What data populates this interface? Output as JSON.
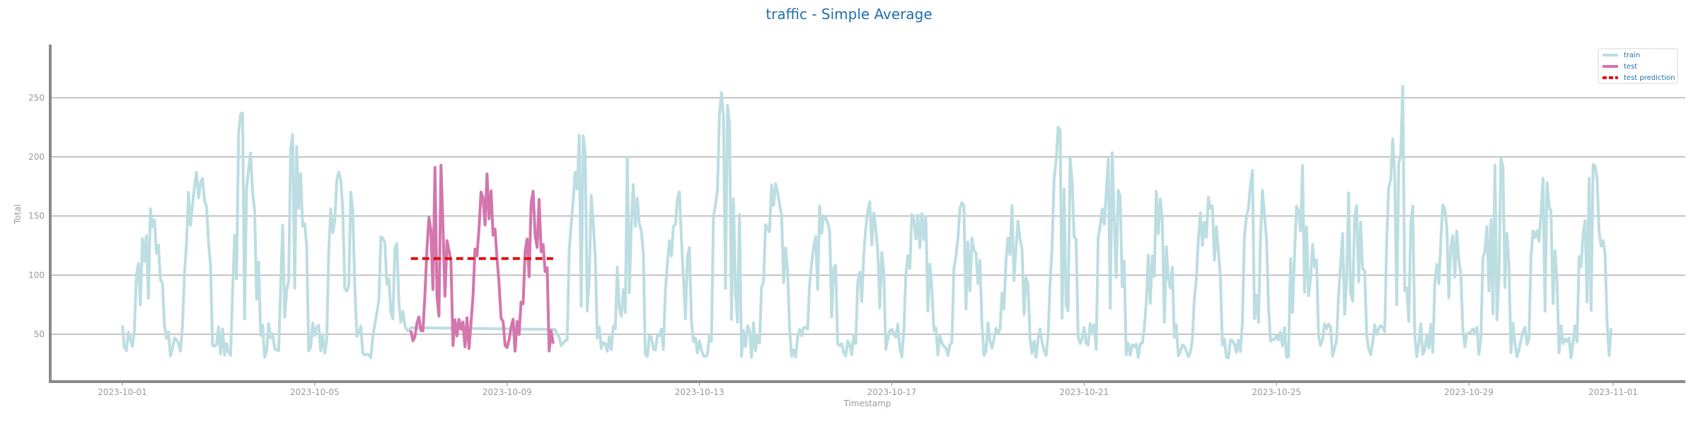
{
  "chart_data": {
    "type": "line",
    "title": "traffic - Simple Average",
    "xlabel": "Timestamp",
    "ylabel": "Total",
    "x_ticks": [
      "2023-10-01",
      "2023-10-05",
      "2023-10-09",
      "2023-10-13",
      "2023-10-17",
      "2023-10-21",
      "2023-10-25",
      "2023-10-29",
      "2023-11-01"
    ],
    "y_ticks": [
      50,
      100,
      150,
      200,
      250
    ],
    "ylim": [
      10,
      295
    ],
    "xlim": [
      "2023-09-29T12:00",
      "2023-11-02T12:00"
    ],
    "grid": "horizontal",
    "legend_position": "top-right",
    "legend": [
      "train",
      "test",
      "test prediction"
    ],
    "colors": {
      "train": "#bcdde1",
      "test": "#d475ad",
      "prediction": "#e01212",
      "title": "#1f6fae"
    },
    "series": [
      {
        "name": "train",
        "segments": [
          {
            "start": "2023-10-01T00:00",
            "end": "2023-10-07T00:00"
          },
          {
            "start": "2023-10-10T00:00",
            "end": "2023-10-31T23:00"
          }
        ],
        "min_value": 20,
        "max_value": 280,
        "peaks": [
          {
            "date": "2023-10-03",
            "value": 266
          },
          {
            "date": "2023-10-13",
            "value": 279
          },
          {
            "date": "2023-10-20",
            "value": 257
          },
          {
            "date": "2023-10-27",
            "value": 280
          }
        ]
      },
      {
        "name": "test",
        "start": "2023-10-07T00:00",
        "end": "2023-10-09T23:00",
        "min_value": 25,
        "max_value": 224
      },
      {
        "name": "test prediction",
        "start": "2023-10-07T00:00",
        "end": "2023-10-09T23:00",
        "value": 114
      }
    ]
  }
}
